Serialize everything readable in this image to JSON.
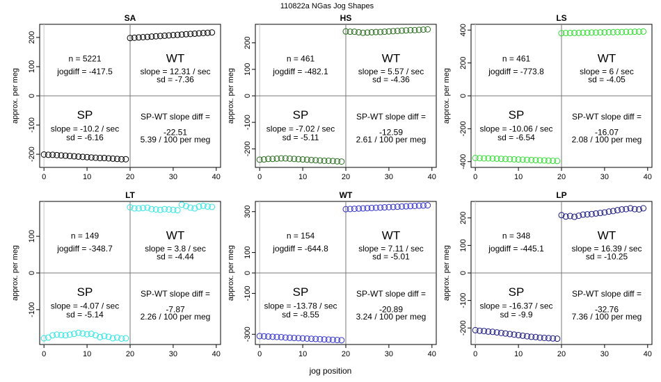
{
  "figure": {
    "title": "110822a    NGas Jog Shapes",
    "xlabel": "jog position",
    "panel_ylabel": "approx. per meg"
  },
  "chart_data": [
    {
      "type": "scatter",
      "title": "SA",
      "xlabel": "jog position",
      "ylabel": "approx. per meg",
      "xlim": [
        -1,
        41
      ],
      "ylim": [
        -245,
        245
      ],
      "xticks": [
        0,
        10,
        20,
        30,
        40
      ],
      "yticks": [
        -200,
        -100,
        0,
        100,
        200
      ],
      "grid": false,
      "point_color": "#000000",
      "series": [
        {
          "x": [
            0,
            1,
            2,
            3,
            4,
            5,
            6,
            7,
            8,
            9,
            10,
            11,
            12,
            13,
            14,
            15,
            16,
            17,
            18,
            19
          ],
          "y": [
            -201,
            -202,
            -202,
            -203,
            -204,
            -205,
            -206,
            -207,
            -208,
            -209,
            -210,
            -211,
            -212,
            -213,
            -213,
            -214,
            -215,
            -216,
            -217,
            -217
          ]
        },
        {
          "x": [
            20,
            21,
            22,
            23,
            24,
            25,
            26,
            27,
            28,
            29,
            30,
            31,
            32,
            33,
            34,
            35,
            36,
            37,
            38,
            39
          ],
          "y": [
            198,
            199,
            200,
            201,
            202,
            203,
            204,
            205,
            206,
            207,
            208,
            209,
            210,
            211,
            212,
            213,
            214,
            215,
            216,
            217
          ]
        }
      ],
      "annotations": {
        "n": "n = 5221",
        "jogdiff": "jogdiff = -417.5",
        "wt": "WT",
        "wt_slope": "slope = 12.31 / sec",
        "wt_sd": "sd = -7.36",
        "sp": "SP",
        "sp_slope": "slope = -10.2 / sec",
        "sp_sd": "sd = -6.16",
        "diff_label": "SP-WT slope diff =",
        "diff_value": "-22.51",
        "diff_per": "5.39 / 100 per meg"
      }
    },
    {
      "type": "scatter",
      "title": "HS",
      "xlabel": "jog position",
      "ylabel": "approx. per meg",
      "xlim": [
        -1,
        41
      ],
      "ylim": [
        -270,
        270
      ],
      "xticks": [
        0,
        10,
        20,
        30,
        40
      ],
      "yticks": [
        -200,
        -100,
        0,
        100,
        200
      ],
      "grid": false,
      "point_color": "#2a6e1f",
      "series": [
        {
          "x": [
            0,
            1,
            2,
            3,
            4,
            5,
            6,
            7,
            8,
            9,
            10,
            11,
            12,
            13,
            14,
            15,
            16,
            17,
            18,
            19
          ],
          "y": [
            -241,
            -240,
            -238,
            -238,
            -237,
            -236,
            -236,
            -237,
            -238,
            -239,
            -240,
            -241,
            -242,
            -243,
            -244,
            -245,
            -245,
            -246,
            -247,
            -248
          ]
        },
        {
          "x": [
            20,
            21,
            22,
            23,
            24,
            25,
            26,
            27,
            28,
            29,
            30,
            31,
            32,
            33,
            34,
            35,
            36,
            37,
            38,
            39
          ],
          "y": [
            243,
            242,
            242,
            240,
            238,
            239,
            240,
            241,
            241,
            242,
            243,
            244,
            245,
            246,
            247,
            248,
            248,
            249,
            250,
            251
          ]
        }
      ],
      "annotations": {
        "n": "n = 461",
        "jogdiff": "jogdiff = -482.1",
        "wt": "WT",
        "wt_slope": "slope = 5.57 / sec",
        "wt_sd": "sd = -4.36",
        "sp": "SP",
        "sp_slope": "slope = -7.02 / sec",
        "sp_sd": "sd = -5.11",
        "diff_label": "SP-WT slope diff =",
        "diff_value": "-12.59",
        "diff_per": "2.61 / 100 per meg"
      }
    },
    {
      "type": "scatter",
      "title": "LS",
      "xlabel": "jog position",
      "ylabel": "approx. per meg",
      "xlim": [
        -1,
        41
      ],
      "ylim": [
        -435,
        435
      ],
      "xticks": [
        0,
        10,
        20,
        30,
        40
      ],
      "yticks": [
        -400,
        -200,
        0,
        200,
        400
      ],
      "grid": false,
      "point_color": "#33dd33",
      "series": [
        {
          "x": [
            0,
            1,
            2,
            3,
            4,
            5,
            6,
            7,
            8,
            9,
            10,
            11,
            12,
            13,
            14,
            15,
            16,
            17,
            18,
            19
          ],
          "y": [
            -378,
            -379,
            -380,
            -380,
            -381,
            -382,
            -383,
            -384,
            -385,
            -386,
            -387,
            -388,
            -389,
            -390,
            -391,
            -392,
            -393,
            -394,
            -395,
            -396
          ]
        },
        {
          "x": [
            20,
            21,
            22,
            23,
            24,
            25,
            26,
            27,
            28,
            29,
            30,
            31,
            32,
            33,
            34,
            35,
            36,
            37,
            38,
            39
          ],
          "y": [
            381,
            382,
            382,
            383,
            383,
            384,
            384,
            385,
            385,
            386,
            386,
            387,
            387,
            388,
            388,
            389,
            389,
            390,
            390,
            391
          ]
        }
      ],
      "annotations": {
        "n": "n = 461",
        "jogdiff": "jogdiff = -773.8",
        "wt": "WT",
        "wt_slope": "slope = 6 / sec",
        "wt_sd": "sd = -4.05",
        "sp": "SP",
        "sp_slope": "slope = -10.06 / sec",
        "sp_sd": "sd = -6.54",
        "diff_label": "SP-WT slope diff =",
        "diff_value": "-16.07",
        "diff_per": "2.08 / 100 per meg"
      }
    },
    {
      "type": "scatter",
      "title": "LT",
      "xlabel": "jog position",
      "ylabel": "approx. per meg",
      "xlim": [
        -1,
        41
      ],
      "ylim": [
        -195,
        195
      ],
      "xticks": [
        0,
        10,
        20,
        30,
        40
      ],
      "yticks": [
        -100,
        0,
        100
      ],
      "grid": false,
      "point_color": "#33e6e6",
      "series": [
        {
          "x": [
            0,
            1,
            2,
            3,
            4,
            5,
            6,
            7,
            8,
            9,
            10,
            11,
            12,
            13,
            14,
            15,
            16,
            17,
            18,
            19
          ],
          "y": [
            -178,
            -176,
            -170,
            -168,
            -169,
            -170,
            -168,
            -166,
            -163,
            -165,
            -167,
            -166,
            -170,
            -175,
            -172,
            -174,
            -178,
            -176,
            -179,
            -178
          ]
        },
        {
          "x": [
            20,
            21,
            22,
            23,
            24,
            25,
            26,
            27,
            28,
            29,
            30,
            31,
            32,
            33,
            34,
            35,
            36,
            37,
            38,
            39
          ],
          "y": [
            179,
            176,
            176,
            177,
            178,
            174,
            173,
            172,
            174,
            173,
            172,
            171,
            186,
            182,
            178,
            176,
            181,
            183,
            181,
            180
          ]
        }
      ],
      "annotations": {
        "n": "n = 149",
        "jogdiff": "jogdiff = -348.7",
        "wt": "WT",
        "wt_slope": "slope = 3.8 / sec",
        "wt_sd": "sd = -4.44",
        "sp": "SP",
        "sp_slope": "slope = -4.07 / sec",
        "sp_sd": "sd = -5.14",
        "diff_label": "SP-WT slope diff =",
        "diff_value": "-7.87",
        "diff_per": "2.26 / 100 per meg"
      }
    },
    {
      "type": "scatter",
      "title": "WT",
      "xlabel": "jog position",
      "ylabel": "approx. per meg",
      "xlim": [
        -1,
        41
      ],
      "ylim": [
        -350,
        350
      ],
      "xticks": [
        0,
        10,
        20,
        30,
        40
      ],
      "yticks": [
        -300,
        -100,
        0,
        100,
        300
      ],
      "grid": false,
      "point_color": "#3333cc",
      "series": [
        {
          "x": [
            0,
            1,
            2,
            3,
            4,
            5,
            6,
            7,
            8,
            9,
            10,
            11,
            12,
            13,
            14,
            15,
            16,
            17,
            18,
            19
          ],
          "y": [
            -309,
            -310,
            -311,
            -312,
            -313,
            -314,
            -316,
            -317,
            -318,
            -319,
            -320,
            -321,
            -322,
            -323,
            -324,
            -325,
            -326,
            -327,
            -328,
            -329
          ]
        },
        {
          "x": [
            20,
            21,
            22,
            23,
            24,
            25,
            26,
            27,
            28,
            29,
            30,
            31,
            32,
            33,
            34,
            35,
            36,
            37,
            38,
            39
          ],
          "y": [
            312,
            313,
            314,
            315,
            316,
            317,
            318,
            319,
            320,
            321,
            322,
            323,
            324,
            325,
            326,
            327,
            328,
            329,
            330,
            331
          ]
        }
      ],
      "annotations": {
        "n": "n = 154",
        "jogdiff": "jogdiff = -644.8",
        "wt": "WT",
        "wt_slope": "slope = 7.11 / sec",
        "wt_sd": "sd = -5.01",
        "sp": "SP",
        "sp_slope": "slope = -13.78 / sec",
        "sp_sd": "sd = -8.55",
        "diff_label": "SP-WT slope diff =",
        "diff_value": "-20.89",
        "diff_per": "3.24 / 100 per meg"
      }
    },
    {
      "type": "scatter",
      "title": "LP",
      "xlabel": "jog position",
      "ylabel": "approx. per meg",
      "xlim": [
        -1,
        41
      ],
      "ylim": [
        -260,
        260
      ],
      "xticks": [
        0,
        10,
        20,
        30,
        40
      ],
      "yticks": [
        -200,
        -100,
        0,
        100,
        200
      ],
      "grid": false,
      "point_color": "#1a1a80",
      "series": [
        {
          "x": [
            0,
            1,
            2,
            3,
            4,
            5,
            6,
            7,
            8,
            9,
            10,
            11,
            12,
            13,
            14,
            15,
            16,
            17,
            18,
            19
          ],
          "y": [
            -208,
            -210,
            -211,
            -213,
            -214,
            -216,
            -218,
            -220,
            -222,
            -224,
            -226,
            -228,
            -230,
            -232,
            -233,
            -235,
            -236,
            -237,
            -238,
            -239
          ]
        },
        {
          "x": [
            20,
            21,
            22,
            23,
            24,
            25,
            26,
            27,
            28,
            29,
            30,
            31,
            32,
            33,
            34,
            35,
            36,
            37,
            38,
            39
          ],
          "y": [
            210,
            205,
            207,
            204,
            208,
            212,
            213,
            214,
            216,
            218,
            220,
            223,
            225,
            228,
            231,
            232,
            235,
            232,
            231,
            235
          ]
        }
      ],
      "annotations": {
        "n": "n = 348",
        "jogdiff": "jogdiff = -445.1",
        "wt": "WT",
        "wt_slope": "slope = 16.39 / sec",
        "wt_sd": "sd = -10.25",
        "sp": "SP",
        "sp_slope": "slope = -16.37 / sec",
        "sp_sd": "sd = -9.9",
        "diff_label": "SP-WT slope diff =",
        "diff_value": "-32.76",
        "diff_per": "7.36 / 100 per meg"
      }
    }
  ]
}
